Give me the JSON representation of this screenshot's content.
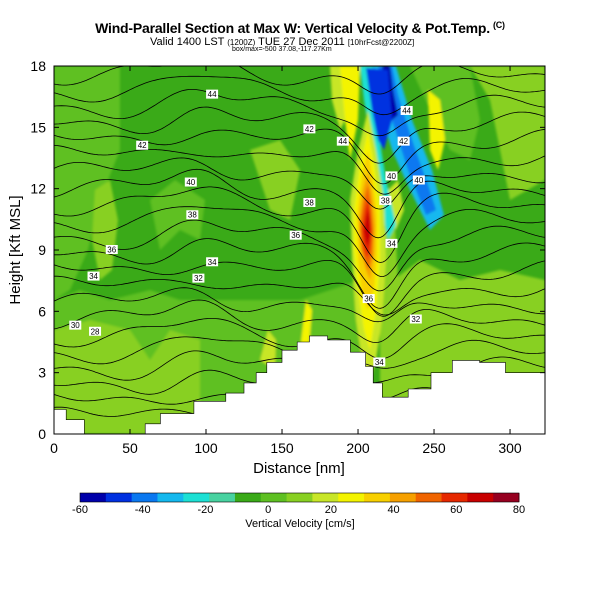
{
  "title": "Wind-Parallel Section at Max W: Vertical Velocity & Pot.Temp.",
  "title_sup": "(C)",
  "subtitle_main": "Valid 1400 LST",
  "subtitle_small1": "(1200Z)",
  "subtitle_date": "TUE 27 Dec 2011",
  "subtitle_small2": "[10hrFcst@2200Z]",
  "subtitle_line2": "box/max=-500 37.08,-117.27Km",
  "chart_data": {
    "type": "heatmap",
    "title": "Wind-Parallel Section at Max W: Vertical Velocity & Pot.Temp.",
    "xlabel": "Distance [nm]",
    "ylabel": "Height [Kft MSL]",
    "xlim": [
      0,
      323
    ],
    "ylim": [
      0,
      18
    ],
    "xticks": [
      0,
      50,
      100,
      150,
      200,
      250,
      300
    ],
    "yticks": [
      0,
      3,
      6,
      9,
      12,
      15,
      18
    ],
    "colorbar": {
      "label": "Vertical Velocity [cm/s]",
      "ticks": [
        -60,
        -40,
        -20,
        0,
        20,
        40,
        60,
        80
      ],
      "range": [
        -60,
        80
      ],
      "colors": [
        "#0000aa",
        "#0030e0",
        "#0a78f0",
        "#14b8ee",
        "#1ce0d4",
        "#48d2a0",
        "#3aaa18",
        "#5ec022",
        "#88d022",
        "#c8e628",
        "#f4f400",
        "#f8d000",
        "#f6a000",
        "#f06400",
        "#e62800",
        "#c80000",
        "#960020"
      ]
    },
    "terrain": [
      [
        0,
        1.2
      ],
      [
        8,
        1.2
      ],
      [
        8,
        0.7
      ],
      [
        20,
        0.7
      ],
      [
        20,
        0
      ],
      [
        60,
        0
      ],
      [
        60,
        0.5
      ],
      [
        70,
        0.5
      ],
      [
        70,
        1
      ],
      [
        92,
        1
      ],
      [
        92,
        1.6
      ],
      [
        113,
        1.6
      ],
      [
        113,
        2
      ],
      [
        125,
        2
      ],
      [
        125,
        2.5
      ],
      [
        133,
        2.5
      ],
      [
        133,
        3
      ],
      [
        140,
        3
      ],
      [
        140,
        3.5
      ],
      [
        150,
        3.5
      ],
      [
        150,
        4.1
      ],
      [
        160,
        4.1
      ],
      [
        160,
        4.5
      ],
      [
        168,
        4.5
      ],
      [
        168,
        4.8
      ],
      [
        180,
        4.8
      ],
      [
        180,
        4.6
      ],
      [
        195,
        4.6
      ],
      [
        195,
        4.0
      ],
      [
        205,
        4.0
      ],
      [
        205,
        3.3
      ],
      [
        210,
        3.3
      ],
      [
        210,
        2.5
      ],
      [
        216,
        2.5
      ],
      [
        216,
        1.8
      ],
      [
        233,
        1.8
      ],
      [
        233,
        2.2
      ],
      [
        248,
        2.2
      ],
      [
        248,
        3.0
      ],
      [
        262,
        3.0
      ],
      [
        262,
        3.6
      ],
      [
        280,
        3.6
      ],
      [
        280,
        3.5
      ],
      [
        297,
        3.5
      ],
      [
        297,
        3.0
      ],
      [
        323,
        3.0
      ]
    ],
    "theta_labels": [
      {
        "x": 104,
        "y": 16.6,
        "label": "44"
      },
      {
        "x": 232,
        "y": 15.8,
        "label": "44"
      },
      {
        "x": 58,
        "y": 14.1,
        "label": "42"
      },
      {
        "x": 168,
        "y": 14.9,
        "label": "42"
      },
      {
        "x": 190,
        "y": 14.3,
        "label": "44"
      },
      {
        "x": 230,
        "y": 14.3,
        "label": "42"
      },
      {
        "x": 90,
        "y": 12.3,
        "label": "40"
      },
      {
        "x": 222,
        "y": 12.6,
        "label": "40"
      },
      {
        "x": 240,
        "y": 12.4,
        "label": "40"
      },
      {
        "x": 168,
        "y": 11.3,
        "label": "38"
      },
      {
        "x": 218,
        "y": 11.4,
        "label": "38"
      },
      {
        "x": 91,
        "y": 10.7,
        "label": "38"
      },
      {
        "x": 159,
        "y": 9.7,
        "label": "36"
      },
      {
        "x": 222,
        "y": 9.3,
        "label": "34"
      },
      {
        "x": 38,
        "y": 9.0,
        "label": "36"
      },
      {
        "x": 104,
        "y": 8.4,
        "label": "34"
      },
      {
        "x": 26,
        "y": 7.7,
        "label": "34"
      },
      {
        "x": 95,
        "y": 7.6,
        "label": "32"
      },
      {
        "x": 207,
        "y": 6.6,
        "label": "36"
      },
      {
        "x": 238,
        "y": 5.6,
        "label": "32"
      },
      {
        "x": 14,
        "y": 5.3,
        "label": "30"
      },
      {
        "x": 27,
        "y": 5.0,
        "label": "28"
      },
      {
        "x": 214,
        "y": 3.5,
        "label": "34"
      }
    ]
  }
}
